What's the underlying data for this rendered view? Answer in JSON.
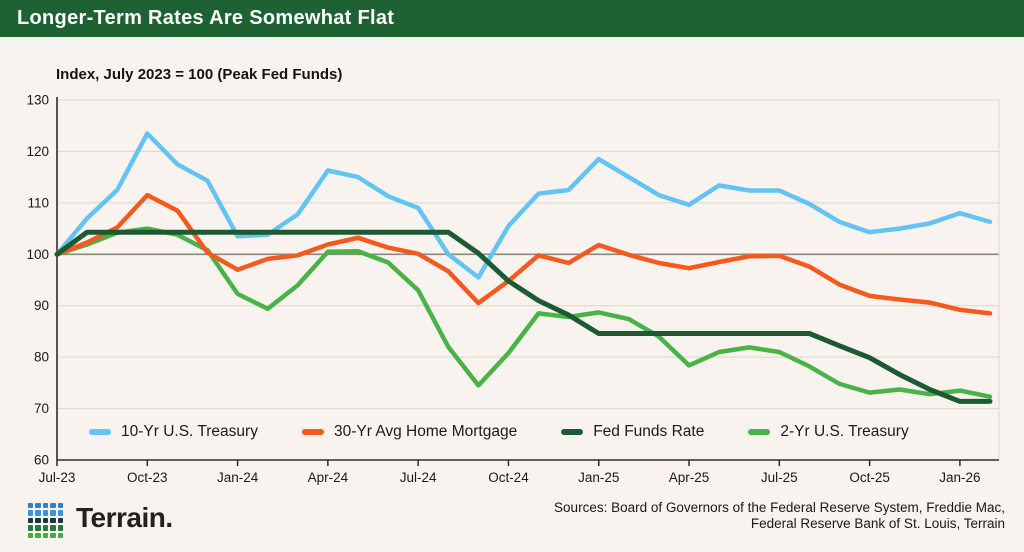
{
  "header": {
    "title": "Longer-Term Rates Are Somewhat Flat",
    "bar_color": "#1e6234"
  },
  "footer": {
    "wordmark": "Terrain.",
    "logo_row_colors": [
      "#2f81c3",
      "#3f93d6",
      "#16373b",
      "#27793f",
      "#43ae49"
    ],
    "sources_line1": "Sources: Board of Governors of the Federal Reserve System, Freddie Mac,",
    "sources_line2": "Federal Reserve Bank of St. Louis, Terrain"
  },
  "colors": {
    "background": "#f8f3ee",
    "gridline": "#dbd5cc",
    "baseline": "#8a8880",
    "axis": "#2d2d2d",
    "tick_text": "#1a1a1a"
  },
  "chart_data": {
    "type": "line",
    "title": "Longer-Term Rates Are Somewhat Flat",
    "subtitle": "Index, July 2023 = 100 (Peak Fed Funds)",
    "xlabel": "",
    "ylabel": "Index (July 2023 = 100)",
    "ylim": [
      60,
      130
    ],
    "y_ticks": [
      60,
      70,
      80,
      90,
      100,
      110,
      120,
      130
    ],
    "baseline_value": 100,
    "grid": true,
    "legend_position": "bottom-inside",
    "x_tick_every": 3,
    "x": [
      "Jul-23",
      "Aug-23",
      "Sep-23",
      "Oct-23",
      "Nov-23",
      "Dec-23",
      "Jan-24",
      "Feb-24",
      "Mar-24",
      "Apr-24",
      "May-24",
      "Jun-24",
      "Jul-24",
      "Aug-24",
      "Sep-24",
      "Oct-24",
      "Nov-24",
      "Dec-24",
      "Jan-25",
      "Feb-25",
      "Mar-25",
      "Apr-25",
      "May-25",
      "Jun-25",
      "Jul-25",
      "Aug-25",
      "Sep-25",
      "Oct-25",
      "Nov-25",
      "Dec-25",
      "Jan-26",
      "Feb-26"
    ],
    "series": [
      {
        "name": "10-Yr U.S. Treasury",
        "color": "#63c3f1",
        "stroke_width": 4.5,
        "values": [
          100,
          107,
          112.5,
          123.5,
          117.5,
          114.3,
          103.5,
          103.8,
          107.8,
          116.3,
          115,
          111.3,
          109,
          100,
          95.5,
          105.5,
          111.8,
          112.5,
          118.5,
          115,
          111.5,
          109.6,
          113.4,
          112.4,
          112.4,
          109.8,
          106.3,
          104.3,
          105,
          106,
          108,
          106.3
        ]
      },
      {
        "name": "2-Yr U.S. Treasury",
        "color": "#4ab348",
        "stroke_width": 4.5,
        "values": [
          100,
          101.9,
          104.2,
          105,
          103.8,
          100.8,
          92.3,
          89.4,
          94,
          100.5,
          100.6,
          98.4,
          93,
          82,
          74.5,
          80.8,
          88.5,
          87.8,
          88.7,
          87.4,
          84,
          78.4,
          81,
          81.9,
          81,
          78.2,
          74.8,
          73.1,
          73.7,
          72.8,
          73.5,
          72.3
        ]
      },
      {
        "name": "30-Yr Avg Home Mortgage",
        "color": "#f4591d",
        "stroke_width": 4.5,
        "values": [
          100,
          102.3,
          105.2,
          111.5,
          108.5,
          100.3,
          97,
          99.1,
          99.8,
          101.9,
          103.2,
          101.3,
          100.1,
          96.7,
          90.5,
          94.8,
          99.8,
          98.3,
          101.8,
          99.9,
          98.3,
          97.3,
          98.5,
          99.6,
          99.7,
          97.6,
          94.1,
          91.9,
          91.2,
          90.6,
          89.2,
          88.5
        ]
      },
      {
        "name": "Fed Funds Rate",
        "color": "#1b5a32",
        "stroke_width": 5,
        "values": [
          100,
          104.3,
          104.3,
          104.3,
          104.3,
          104.3,
          104.3,
          104.3,
          104.3,
          104.3,
          104.3,
          104.3,
          104.3,
          104.3,
          100.2,
          94.8,
          91,
          88.2,
          84.6,
          84.6,
          84.6,
          84.6,
          84.6,
          84.6,
          84.6,
          84.6,
          82.2,
          79.9,
          76.6,
          73.7,
          71.4,
          71.4
        ]
      }
    ],
    "legend_order": [
      "10-Yr U.S. Treasury",
      "30-Yr Avg Home Mortgage",
      "Fed Funds Rate",
      "2-Yr U.S. Treasury"
    ]
  }
}
